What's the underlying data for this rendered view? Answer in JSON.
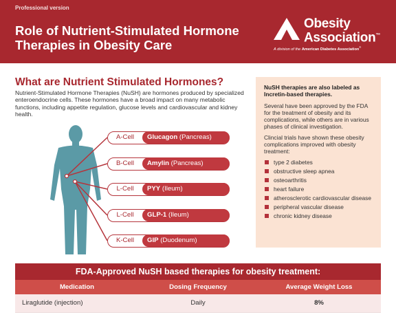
{
  "header": {
    "version": "Professional version",
    "title": "Role of Nutrient-Stimulated Hormone Therapies in Obesity Care",
    "logo_line1": "Obesity",
    "logo_line2": "Association",
    "logo_trademark": "™",
    "logo_sub_prefix": "A division of the",
    "logo_sub_org": "American Diabetes Association",
    "logo_sub_mark": "®",
    "colors": {
      "header_bg": "#a8282f",
      "accent": "#c0393f"
    }
  },
  "intro": {
    "heading": "What are Nutrient Stimulated Hormones?",
    "body": "Nutrient-Stimulated Hormone Therapies (NuSH) are hormones produced by specialized enteroendocrine cells. These hormones have a broad impact on many metabolic functions, including appetite regulation, glucose levels and cardiovascular and kidney health."
  },
  "cells": [
    {
      "type": "A-Cell",
      "hormone": "Glucagon",
      "source": "(Pancreas)"
    },
    {
      "type": "B-Cell",
      "hormone": "Amylin",
      "source": "(Pancreas)"
    },
    {
      "type": "L-Cell",
      "hormone": "PYY",
      "source": "(Ileum)"
    },
    {
      "type": "L-Cell",
      "hormone": "GLP-1",
      "source": "(Ileum)"
    },
    {
      "type": "K-Cell",
      "hormone": "GIP",
      "source": "(Duodenum)"
    }
  ],
  "sidebar": {
    "heading": "NuSH therapies are also labeled as Incretin-based therapies.",
    "p1": "Several have been approved by the FDA for the treatment of obesity and its complications, while others are in various phases of clinical investigation.",
    "p2": "Clincial trials have shown these obesity complications improved with obesity treatment:",
    "items": [
      "type 2 diabetes",
      "obstructive sleep apnea",
      "osteoarthritis",
      "heart failure",
      "atherosclerotic cardiovascular disease",
      "peripheral vascular disease",
      "chronic kidney disease"
    ]
  },
  "table": {
    "title": "FDA-Approved NuSH based therapies for obesity treatment:",
    "headers": [
      "Medication",
      "Dosing Frequency",
      "Average Weight Loss"
    ],
    "rows": [
      [
        "Liraglutide (injection)",
        "Daily",
        "8%"
      ]
    ]
  }
}
